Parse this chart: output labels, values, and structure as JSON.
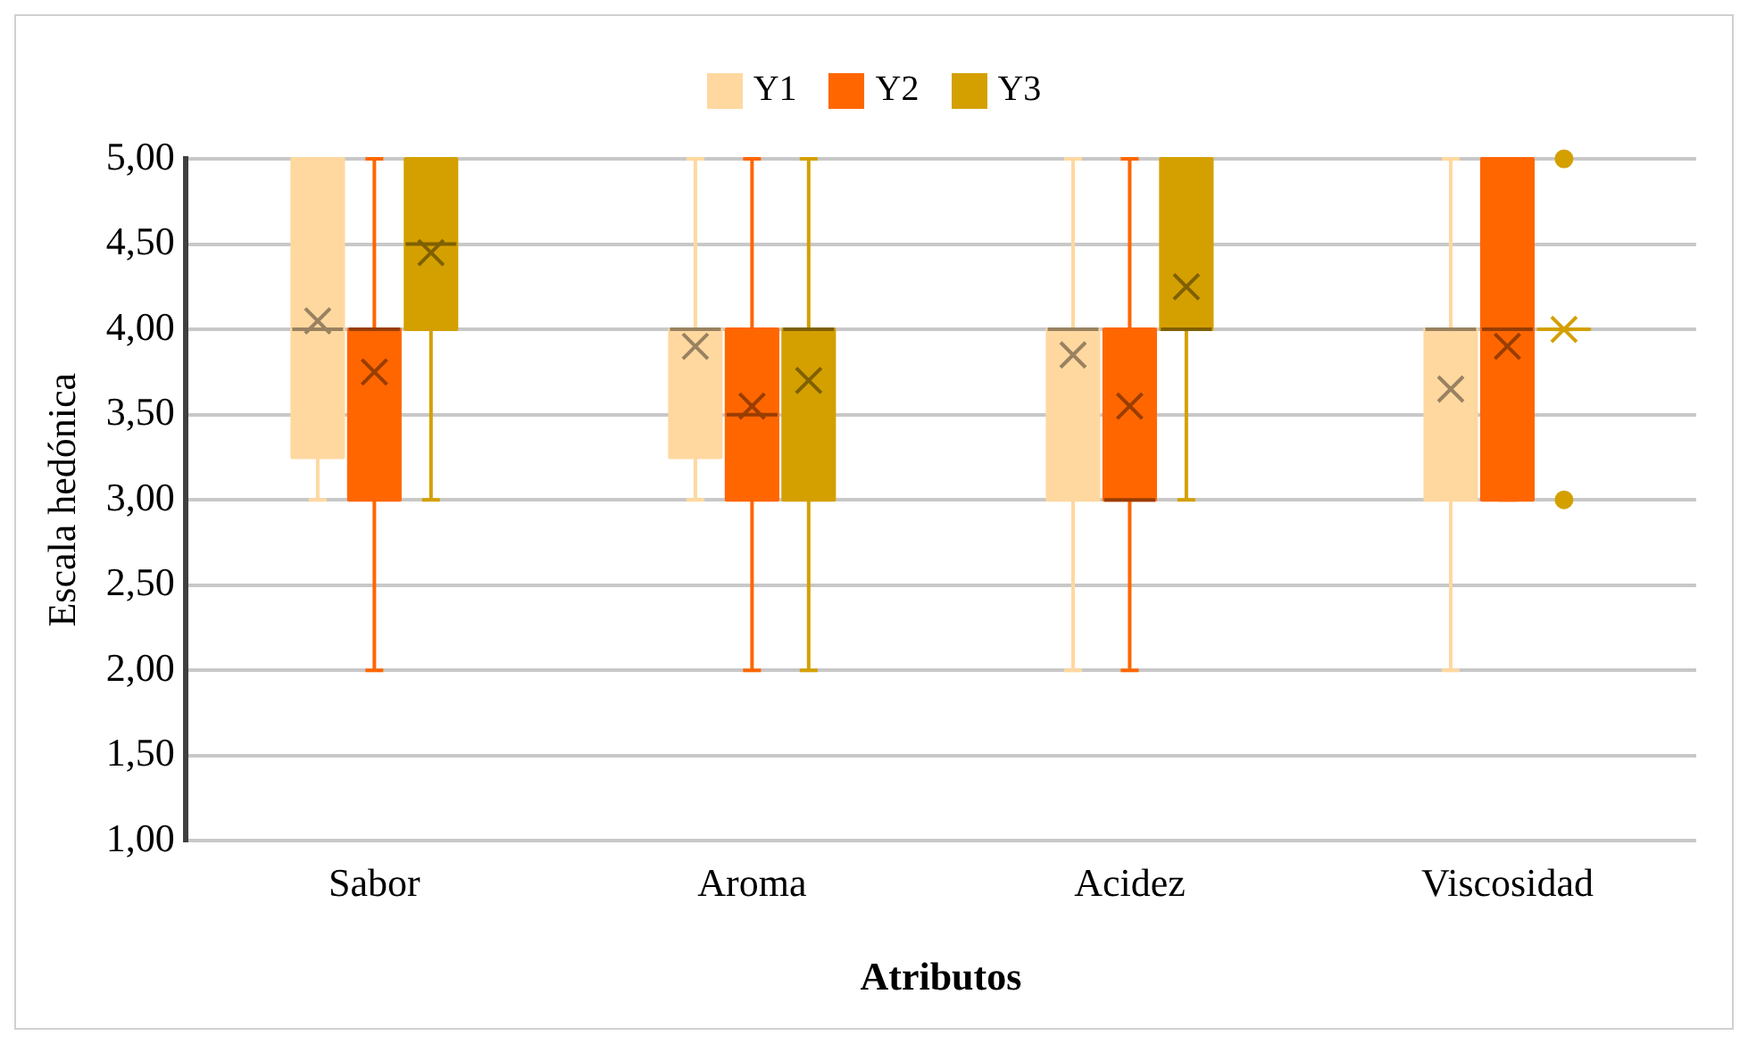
{
  "chart_data": {
    "type": "box",
    "xlabel": "Atributos",
    "ylabel": "Escala hedónica",
    "categories": [
      "Sabor",
      "Aroma",
      "Acidez",
      "Viscosidad"
    ],
    "ylim": [
      1,
      5
    ],
    "yticks": [
      {
        "value": 1,
        "label": "1,00"
      },
      {
        "value": 1.5,
        "label": "1,50"
      },
      {
        "value": 2,
        "label": "2,00"
      },
      {
        "value": 2.5,
        "label": "2,50"
      },
      {
        "value": 3,
        "label": "3,00"
      },
      {
        "value": 3.5,
        "label": "3,50"
      },
      {
        "value": 4,
        "label": "4,00"
      },
      {
        "value": 4.5,
        "label": "4,50"
      },
      {
        "value": 5,
        "label": "5,00"
      }
    ],
    "grid": "y",
    "legend": "top",
    "series": [
      {
        "name": "Y1",
        "color": "#ffd8a0",
        "boxes": [
          {
            "low": 3,
            "q1": 3.25,
            "median": 4,
            "q3": 5,
            "high": 5,
            "mean": 4.05
          },
          {
            "low": 3,
            "q1": 3.25,
            "median": 4,
            "q3": 4,
            "high": 5,
            "mean": 3.9
          },
          {
            "low": 2,
            "q1": 3,
            "median": 4,
            "q3": 4,
            "high": 5,
            "mean": 3.85
          },
          {
            "low": 2,
            "q1": 3,
            "median": 4,
            "q3": 4,
            "high": 5,
            "mean": 3.65
          }
        ]
      },
      {
        "name": "Y2",
        "color": "#ff6600",
        "boxes": [
          {
            "low": 2,
            "q1": 3,
            "median": 4,
            "q3": 4,
            "high": 5,
            "mean": 3.75
          },
          {
            "low": 2,
            "q1": 3,
            "median": 3.5,
            "q3": 4,
            "high": 5,
            "mean": 3.55
          },
          {
            "low": 2,
            "q1": 3,
            "median": 3,
            "q3": 4,
            "high": 5,
            "mean": 3.55
          },
          {
            "low": 3,
            "q1": 3,
            "median": 4,
            "q3": 5,
            "high": 5,
            "mean": 3.9
          }
        ]
      },
      {
        "name": "Y3",
        "color": "#d4a000",
        "boxes": [
          {
            "low": 3,
            "q1": 4,
            "median": 4.5,
            "q3": 5,
            "high": 5,
            "mean": 4.45
          },
          {
            "low": 2,
            "q1": 3,
            "median": 4,
            "q3": 4,
            "high": 5,
            "mean": 3.7
          },
          {
            "low": 3,
            "q1": 4,
            "median": 4,
            "q3": 5,
            "high": 5,
            "mean": 4.25
          },
          {
            "low": 4,
            "q1": 4,
            "median": 4,
            "q3": 4,
            "high": 4,
            "mean": 4,
            "outliers": [
              3,
              5
            ]
          }
        ]
      }
    ]
  }
}
